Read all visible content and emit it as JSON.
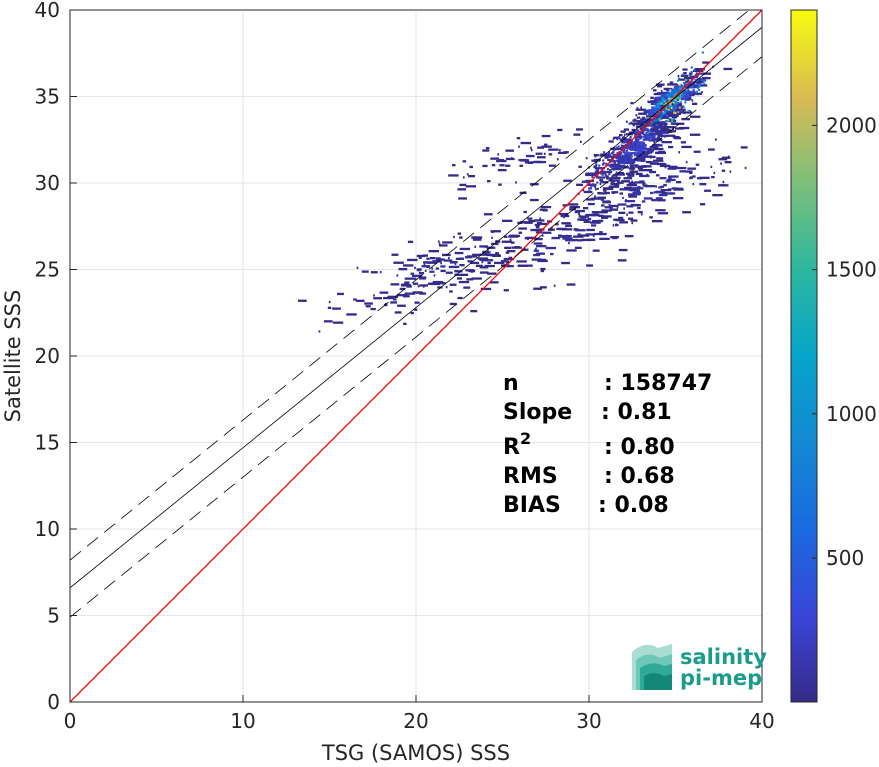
{
  "chart_data": {
    "type": "heatmap",
    "xlabel": "TSG (SAMOS) SSS",
    "ylabel": "Satellite SSS",
    "xlim": [
      0,
      40
    ],
    "ylim": [
      0,
      40
    ],
    "xticks": [
      "0",
      "10",
      "20",
      "30",
      "40"
    ],
    "yticks": [
      "0",
      "5",
      "10",
      "15",
      "20",
      "25",
      "30",
      "35",
      "40"
    ],
    "grid": true,
    "colorbar": {
      "colormap": "parula",
      "range": [
        1,
        2400
      ],
      "ticks": [
        "500",
        "1000",
        "1500",
        "2000"
      ],
      "tick_values": [
        500,
        1000,
        1500,
        2000
      ]
    },
    "lines": [
      {
        "name": "one_to_one",
        "color": "#ff0000",
        "style": "solid",
        "intercept": 0,
        "slope": 1
      },
      {
        "name": "regression",
        "color": "#000000",
        "style": "solid",
        "intercept": 6.6,
        "slope": 0.81
      },
      {
        "name": "regression_upper",
        "color": "#000000",
        "style": "dashed",
        "intercept": 8.2,
        "slope": 0.81
      },
      {
        "name": "regression_lower",
        "color": "#000000",
        "style": "dashed",
        "intercept": 4.9,
        "slope": 0.81
      }
    ],
    "density_clusters": [
      {
        "x": 34.5,
        "y": 34.8,
        "sx": 1.0,
        "sy": 0.9,
        "count": 260,
        "peak": 2400
      },
      {
        "x": 32.5,
        "y": 32.0,
        "sx": 1.4,
        "sy": 1.3,
        "count": 300,
        "peak": 350
      },
      {
        "x": 33.0,
        "y": 29.5,
        "sx": 2.8,
        "sy": 1.5,
        "count": 160,
        "peak": 150
      },
      {
        "x": 28.0,
        "y": 27.0,
        "sx": 3.5,
        "sy": 2.0,
        "count": 170,
        "peak": 90
      },
      {
        "x": 21.0,
        "y": 25.0,
        "sx": 2.6,
        "sy": 1.3,
        "count": 170,
        "peak": 90
      },
      {
        "x": 26.0,
        "y": 31.5,
        "sx": 2.2,
        "sy": 0.9,
        "count": 60,
        "peak": 60
      }
    ],
    "stats": {
      "labels": [
        "n",
        "Slope",
        "R",
        "RMS",
        "BIAS"
      ],
      "label_r_superscript": "2",
      "values": [
        ": 158747",
        ": 0.81",
        ": 0.80",
        ": 0.68",
        ": 0.08"
      ]
    }
  },
  "logo": {
    "line1": "salinity",
    "line2": "pi-mep"
  }
}
